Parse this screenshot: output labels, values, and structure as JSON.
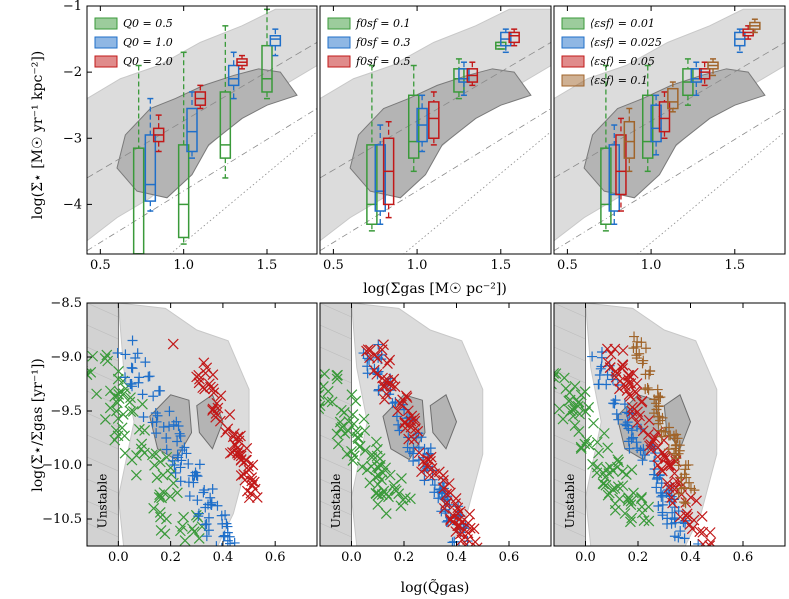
{
  "figure": {
    "top_xlabel": "log(Σgas [M☉ pc⁻²])",
    "top_ylabel": "log(Σ̇⋆ [M☉ yr⁻¹ kpc⁻²])",
    "bottom_xlabel": "log(Q̃gas)",
    "bottom_ylabel": "log(Σ̇⋆/Σgas [yr⁻¹])",
    "unstable_label": "Unstable"
  },
  "colors": {
    "green": "#3a9a3a",
    "blue": "#1f6fc9",
    "red": "#c21818",
    "brown": "#a0642a"
  },
  "chart_data": [
    {
      "type": "box",
      "panel": "top-left",
      "xlim": [
        0.42,
        1.8
      ],
      "ylim": [
        -4.75,
        -1.0
      ],
      "xticks": [
        "0.5",
        "1.0",
        "1.5"
      ],
      "yticks": [
        "−4",
        "−3",
        "−2",
        "−1"
      ],
      "legend": [
        {
          "label": "Q0 = 0.5",
          "color": "green"
        },
        {
          "label": "Q0 = 1.0",
          "color": "blue"
        },
        {
          "label": "Q0 = 2.0",
          "color": "red"
        }
      ],
      "boxes": [
        {
          "color": "green",
          "x": 0.73,
          "q1": -4.75,
          "med": -4.75,
          "q3": -3.15,
          "lo": -4.75,
          "hi": -1.9
        },
        {
          "color": "green",
          "x": 1.0,
          "q1": -4.5,
          "med": -4.0,
          "q3": -3.1,
          "lo": -4.6,
          "hi": -1.7
        },
        {
          "color": "green",
          "x": 1.25,
          "q1": -3.3,
          "med": -3.1,
          "q3": -2.3,
          "lo": -3.6,
          "hi": -1.3
        },
        {
          "color": "green",
          "x": 1.5,
          "q1": -2.3,
          "med": -2.1,
          "q3": -1.6,
          "lo": -2.4,
          "hi": -1.05
        },
        {
          "color": "blue",
          "x": 0.8,
          "q1": -3.95,
          "med": -3.7,
          "q3": -2.95,
          "lo": -4.1,
          "hi": -2.4
        },
        {
          "color": "blue",
          "x": 1.05,
          "q1": -3.2,
          "med": -2.9,
          "q3": -2.55,
          "lo": -3.3,
          "hi": -2.3
        },
        {
          "color": "blue",
          "x": 1.3,
          "q1": -2.2,
          "med": -2.1,
          "q3": -1.9,
          "lo": -2.4,
          "hi": -1.7
        },
        {
          "color": "blue",
          "x": 1.55,
          "q1": -1.6,
          "med": -1.5,
          "q3": -1.45,
          "lo": -1.75,
          "hi": -1.35
        },
        {
          "color": "red",
          "x": 0.85,
          "q1": -3.05,
          "med": -2.95,
          "q3": -2.85,
          "lo": -3.2,
          "hi": -2.65
        },
        {
          "color": "red",
          "x": 1.1,
          "q1": -2.5,
          "med": -2.4,
          "q3": -2.3,
          "lo": -2.55,
          "hi": -2.2
        },
        {
          "color": "red",
          "x": 1.35,
          "q1": -1.9,
          "med": -1.85,
          "q3": -1.8,
          "lo": -1.95,
          "hi": -1.75
        }
      ]
    },
    {
      "type": "box",
      "panel": "top-middle",
      "xlim": [
        0.42,
        1.8
      ],
      "ylim": [
        -4.75,
        -1.0
      ],
      "xticks": [
        "0.5",
        "1.0",
        "1.5"
      ],
      "yticks": [],
      "legend": [
        {
          "label": "f0sf = 0.1",
          "color": "green"
        },
        {
          "label": "f0sf = 0.3",
          "color": "blue"
        },
        {
          "label": "f0sf = 0.5",
          "color": "red"
        }
      ],
      "boxes": [
        {
          "color": "green",
          "x": 0.73,
          "q1": -4.3,
          "med": -4.0,
          "q3": -3.1,
          "lo": -4.4,
          "hi": -1.9
        },
        {
          "color": "green",
          "x": 0.98,
          "q1": -3.3,
          "med": -3.05,
          "q3": -2.35,
          "lo": -3.5,
          "hi": -1.9
        },
        {
          "color": "green",
          "x": 1.25,
          "q1": -2.3,
          "med": -2.1,
          "q3": -1.95,
          "lo": -2.4,
          "hi": -1.8
        },
        {
          "color": "green",
          "x": 1.5,
          "q1": -1.65,
          "med": -1.6,
          "q3": -1.55,
          "lo": -1.65,
          "hi": -1.55
        },
        {
          "color": "blue",
          "x": 0.78,
          "q1": -4.1,
          "med": -3.8,
          "q3": -3.1,
          "lo": -4.3,
          "hi": -2.8
        },
        {
          "color": "blue",
          "x": 1.03,
          "q1": -3.05,
          "med": -2.8,
          "q3": -2.55,
          "lo": -3.2,
          "hi": -2.35
        },
        {
          "color": "blue",
          "x": 1.28,
          "q1": -2.15,
          "med": -2.1,
          "q3": -1.95,
          "lo": -2.35,
          "hi": -1.85
        },
        {
          "color": "blue",
          "x": 1.53,
          "q1": -1.6,
          "med": -1.5,
          "q3": -1.4,
          "lo": -1.7,
          "hi": -1.35
        },
        {
          "color": "red",
          "x": 0.83,
          "q1": -4.0,
          "med": -3.5,
          "q3": -3.0,
          "lo": -4.2,
          "hi": -2.75
        },
        {
          "color": "red",
          "x": 1.1,
          "q1": -3.0,
          "med": -2.7,
          "q3": -2.45,
          "lo": -3.1,
          "hi": -2.3
        },
        {
          "color": "red",
          "x": 1.33,
          "q1": -2.15,
          "med": -2.05,
          "q3": -1.95,
          "lo": -2.2,
          "hi": -1.85
        },
        {
          "color": "red",
          "x": 1.58,
          "q1": -1.55,
          "med": -1.45,
          "q3": -1.4,
          "lo": -1.6,
          "hi": -1.35
        }
      ]
    },
    {
      "type": "box",
      "panel": "top-right",
      "xlim": [
        0.42,
        1.8
      ],
      "ylim": [
        -4.75,
        -1.0
      ],
      "xticks": [
        "0.5",
        "1.0",
        "1.5"
      ],
      "yticks": [],
      "legend": [
        {
          "label": "⟨εsf⟩ = 0.01",
          "color": "green"
        },
        {
          "label": "⟨εsf⟩ = 0.025",
          "color": "blue"
        },
        {
          "label": "⟨εsf⟩ = 0.05",
          "color": "red"
        },
        {
          "label": "⟨εsf⟩ = 0.1",
          "color": "brown"
        }
      ],
      "boxes": [
        {
          "color": "green",
          "x": 0.73,
          "q1": -4.3,
          "med": -4.0,
          "q3": -3.15,
          "lo": -4.4,
          "hi": -1.9
        },
        {
          "color": "green",
          "x": 0.98,
          "q1": -3.3,
          "med": -3.05,
          "q3": -2.35,
          "lo": -3.5,
          "hi": -1.9
        },
        {
          "color": "green",
          "x": 1.22,
          "q1": -2.35,
          "med": -2.15,
          "q3": -1.95,
          "lo": -2.5,
          "hi": -1.8
        },
        {
          "color": "blue",
          "x": 0.78,
          "q1": -4.1,
          "med": -3.85,
          "q3": -3.1,
          "lo": -4.3,
          "hi": -2.8
        },
        {
          "color": "blue",
          "x": 1.03,
          "q1": -3.05,
          "med": -2.85,
          "q3": -2.5,
          "lo": -3.25,
          "hi": -2.35
        },
        {
          "color": "blue",
          "x": 1.27,
          "q1": -2.15,
          "med": -2.1,
          "q3": -1.95,
          "lo": -2.35,
          "hi": -1.85
        },
        {
          "color": "blue",
          "x": 1.53,
          "q1": -1.6,
          "med": -1.5,
          "q3": -1.4,
          "lo": -1.7,
          "hi": -1.35
        },
        {
          "color": "red",
          "x": 0.82,
          "q1": -3.85,
          "med": -3.5,
          "q3": -2.95,
          "lo": -4.1,
          "hi": -2.7
        },
        {
          "color": "red",
          "x": 1.08,
          "q1": -2.9,
          "med": -2.7,
          "q3": -2.45,
          "lo": -3.0,
          "hi": -2.3
        },
        {
          "color": "red",
          "x": 1.32,
          "q1": -2.1,
          "med": -2.0,
          "q3": -1.95,
          "lo": -2.2,
          "hi": -1.85
        },
        {
          "color": "red",
          "x": 1.58,
          "q1": -1.45,
          "med": -1.4,
          "q3": -1.35,
          "lo": -1.5,
          "hi": -1.3
        },
        {
          "color": "brown",
          "x": 0.87,
          "q1": -3.3,
          "med": -3.05,
          "q3": -2.75,
          "lo": -3.5,
          "hi": -2.55
        },
        {
          "color": "brown",
          "x": 1.13,
          "q1": -2.55,
          "med": -2.45,
          "q3": -2.25,
          "lo": -2.6,
          "hi": -2.15
        },
        {
          "color": "brown",
          "x": 1.37,
          "q1": -1.95,
          "med": -1.9,
          "q3": -1.85,
          "lo": -2.05,
          "hi": -1.8
        },
        {
          "color": "brown",
          "x": 1.62,
          "q1": -1.35,
          "med": -1.3,
          "q3": -1.25,
          "lo": -1.4,
          "hi": -1.2
        }
      ]
    },
    {
      "type": "scatter",
      "panel": "bottom-left",
      "xlim": [
        -0.12,
        0.76
      ],
      "ylim": [
        -10.75,
        -8.5
      ],
      "xticks": [
        "0.0",
        "0.2",
        "0.4",
        "0.6"
      ],
      "yticks": [
        "−8.5",
        "−9.0",
        "−9.5",
        "−10.0",
        "−10.5"
      ],
      "series": [
        {
          "color": "green",
          "marker": "x",
          "from": [
            -0.12,
            -8.95
          ],
          "to": [
            0.28,
            -10.75
          ],
          "spread": 0.09,
          "n": 80
        },
        {
          "color": "blue",
          "marker": "+",
          "from": [
            0.02,
            -8.9
          ],
          "to": [
            0.42,
            -10.75
          ],
          "spread": 0.05,
          "n": 90
        },
        {
          "color": "red",
          "marker": "x",
          "from": [
            0.3,
            -9.05
          ],
          "to": [
            0.53,
            -10.25
          ],
          "spread": 0.03,
          "n": 60
        }
      ],
      "extra_points": [
        {
          "color": "red",
          "marker": "x",
          "x": 0.21,
          "y": -8.88
        }
      ]
    },
    {
      "type": "scatter",
      "panel": "bottom-middle",
      "xlim": [
        -0.12,
        0.76
      ],
      "ylim": [
        -10.75,
        -8.5
      ],
      "xticks": [
        "0.0",
        "0.2",
        "0.4",
        "0.6"
      ],
      "yticks": [],
      "series": [
        {
          "color": "green",
          "marker": "x",
          "from": [
            -0.12,
            -9.18
          ],
          "to": [
            0.18,
            -10.4
          ],
          "spread": 0.07,
          "n": 85
        },
        {
          "color": "blue",
          "marker": "+",
          "from": [
            0.06,
            -8.92
          ],
          "to": [
            0.44,
            -10.75
          ],
          "spread": 0.04,
          "n": 90
        },
        {
          "color": "red",
          "marker": "x",
          "from": [
            0.08,
            -8.92
          ],
          "to": [
            0.46,
            -10.75
          ],
          "spread": 0.04,
          "n": 90
        }
      ]
    },
    {
      "type": "scatter",
      "panel": "bottom-right",
      "xlim": [
        -0.12,
        0.76
      ],
      "ylim": [
        -10.75,
        -8.5
      ],
      "xticks": [
        "0.0",
        "0.2",
        "0.4",
        "0.6"
      ],
      "yticks": [],
      "series": [
        {
          "color": "green",
          "marker": "x",
          "from": [
            -0.12,
            -9.15
          ],
          "to": [
            0.2,
            -10.5
          ],
          "spread": 0.07,
          "n": 80
        },
        {
          "color": "blue",
          "marker": "+",
          "from": [
            0.02,
            -8.92
          ],
          "to": [
            0.4,
            -10.75
          ],
          "spread": 0.04,
          "n": 85
        },
        {
          "color": "red",
          "marker": "x",
          "from": [
            0.1,
            -8.92
          ],
          "to": [
            0.46,
            -10.75
          ],
          "spread": 0.04,
          "n": 90
        },
        {
          "color": "brown",
          "marker": "+",
          "from": [
            0.18,
            -8.82
          ],
          "to": [
            0.4,
            -10.3
          ],
          "spread": 0.03,
          "n": 70
        }
      ]
    }
  ]
}
